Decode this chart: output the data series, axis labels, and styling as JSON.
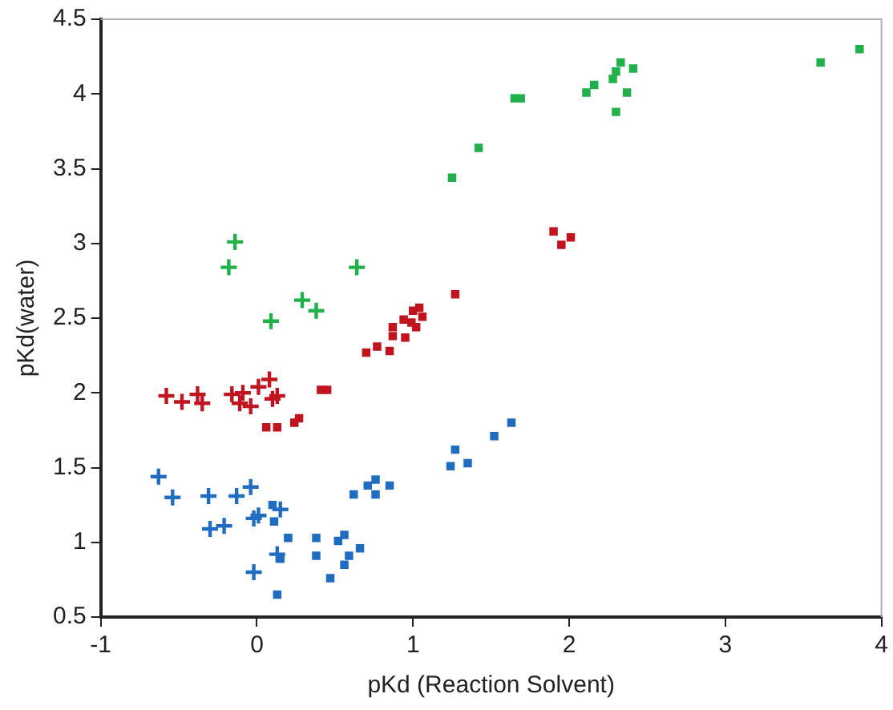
{
  "chart_data": {
    "type": "scatter",
    "xlabel": "pKd (Reaction Solvent)",
    "ylabel": "pKd(water)",
    "xlim": [
      -1,
      4
    ],
    "ylim": [
      0.5,
      4.5
    ],
    "xticks": [
      -1,
      0,
      1,
      2,
      3,
      4
    ],
    "yticks": [
      0.5,
      1,
      1.5,
      2,
      2.5,
      3,
      3.5,
      4,
      4.5
    ],
    "grid": false,
    "legend": false,
    "series": [
      {
        "color": "#22b04a",
        "marker": "square",
        "x": [
          1.25,
          1.42,
          1.65,
          1.69,
          2.11,
          2.16,
          2.28,
          2.3,
          2.33,
          2.41,
          2.37,
          2.3,
          3.61,
          3.86
        ],
        "values": [
          3.44,
          3.64,
          3.97,
          3.97,
          4.01,
          4.06,
          4.1,
          4.15,
          4.21,
          4.17,
          4.01,
          3.88,
          4.21,
          4.3
        ]
      },
      {
        "color": "#22b04a",
        "marker": "cross",
        "x": [
          -0.14,
          -0.18,
          0.64,
          0.29,
          0.38,
          0.09
        ],
        "values": [
          3.01,
          2.84,
          2.84,
          2.62,
          2.55,
          2.48
        ]
      },
      {
        "color": "#c0141e",
        "marker": "square",
        "x": [
          0.7,
          0.77,
          0.85,
          0.87,
          0.87,
          0.94,
          0.95,
          0.99,
          1.0,
          1.04,
          1.06,
          1.02,
          1.27,
          1.9,
          2.01,
          1.95,
          0.41,
          0.45,
          0.06,
          0.13,
          0.24,
          0.27
        ],
        "values": [
          2.27,
          2.31,
          2.28,
          2.44,
          2.38,
          2.49,
          2.37,
          2.47,
          2.55,
          2.57,
          2.51,
          2.44,
          2.66,
          3.08,
          3.04,
          2.99,
          2.02,
          2.02,
          1.77,
          1.77,
          1.8,
          1.83
        ]
      },
      {
        "color": "#c0141e",
        "marker": "cross",
        "x": [
          -0.58,
          -0.48,
          -0.38,
          -0.35,
          -0.16,
          -0.09,
          -0.11,
          -0.04,
          0.01,
          0.08,
          0.1,
          0.13
        ],
        "values": [
          1.98,
          1.94,
          1.99,
          1.93,
          1.99,
          2.0,
          1.93,
          1.91,
          2.04,
          2.09,
          1.96,
          1.98
        ]
      },
      {
        "color": "#1f6cc0",
        "marker": "square",
        "x": [
          0.1,
          0.11,
          0.2,
          0.15,
          0.13,
          0.38,
          0.38,
          0.47,
          0.52,
          0.56,
          0.59,
          0.66,
          0.56,
          0.62,
          0.71,
          0.76,
          0.76,
          0.85,
          1.24,
          1.27,
          1.35,
          1.52,
          1.63
        ],
        "values": [
          1.25,
          1.14,
          1.03,
          0.89,
          0.65,
          1.03,
          0.91,
          0.76,
          1.01,
          1.05,
          0.91,
          0.96,
          0.85,
          1.32,
          1.38,
          1.42,
          1.32,
          1.38,
          1.51,
          1.62,
          1.53,
          1.71,
          1.8
        ]
      },
      {
        "color": "#1f6cc0",
        "marker": "cross",
        "x": [
          -0.63,
          -0.54,
          -0.31,
          -0.13,
          -0.04,
          -0.3,
          -0.21,
          -0.02,
          0.01,
          0.13,
          -0.02,
          0.15
        ],
        "values": [
          1.44,
          1.3,
          1.31,
          1.31,
          1.37,
          1.09,
          1.11,
          1.16,
          1.18,
          0.92,
          0.8,
          1.22
        ]
      }
    ]
  }
}
